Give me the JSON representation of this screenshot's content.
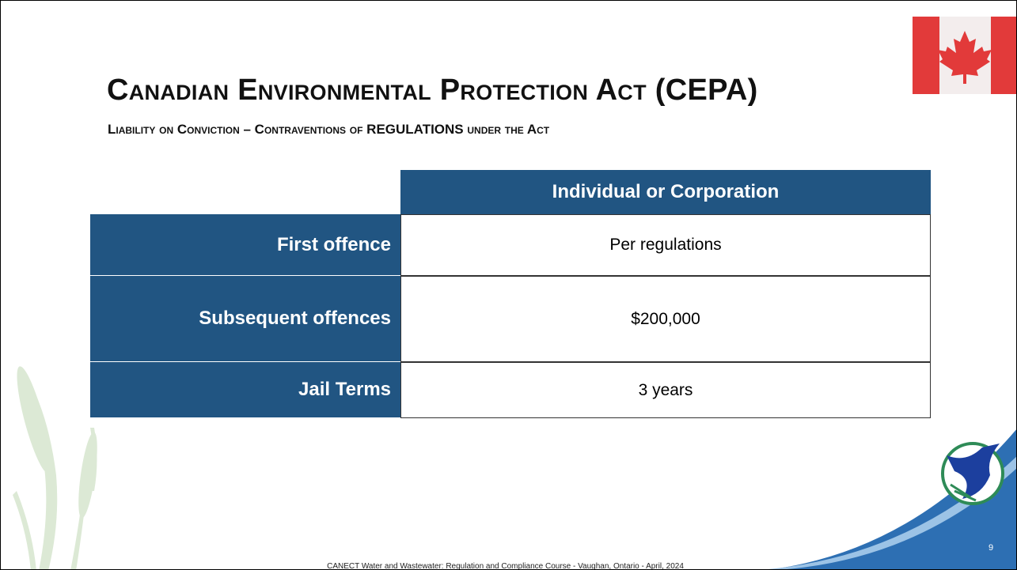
{
  "slide": {
    "title": "Canadian Environmental Protection Act (CEPA)",
    "subtitle": "Liability on Conviction – Contraventions of REGULATIONS under the Act",
    "table": {
      "header": "Individual or Corporation",
      "rows": [
        [
          "First offence",
          "Per regulations"
        ],
        [
          "Subsequent offences",
          "$200,000"
        ],
        [
          "Jail Terms",
          "3 years"
        ]
      ]
    },
    "footer": "CANECT Water and Wastewater: Regulation and Compliance Course - Vaughan, Ontario - April, 2024",
    "page_number": "9"
  }
}
